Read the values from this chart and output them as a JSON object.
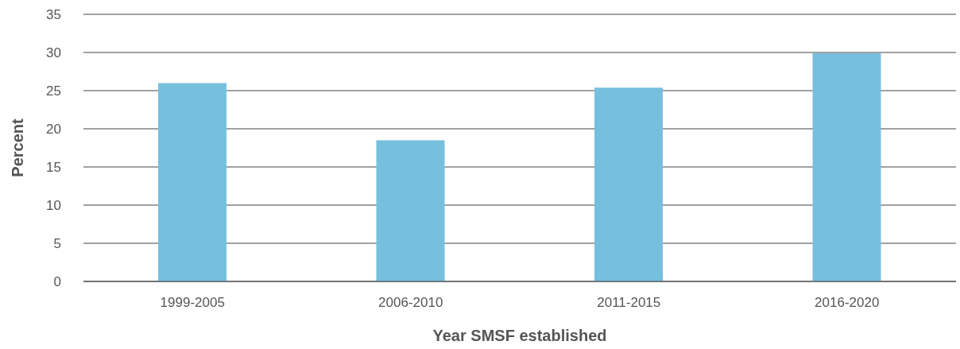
{
  "chart_data": {
    "type": "bar",
    "xlabel": "Year SMSF established",
    "ylabel": "Percent",
    "categories": [
      "1999-2005",
      "2006-2010",
      "2011-2015",
      "2016-2020"
    ],
    "values": [
      26.0,
      18.5,
      25.4,
      29.9
    ],
    "color": "#77c0dd",
    "ylim": [
      0,
      35
    ],
    "yticks": [
      0,
      5,
      10,
      15,
      20,
      25,
      30,
      35
    ],
    "grid": "y"
  }
}
